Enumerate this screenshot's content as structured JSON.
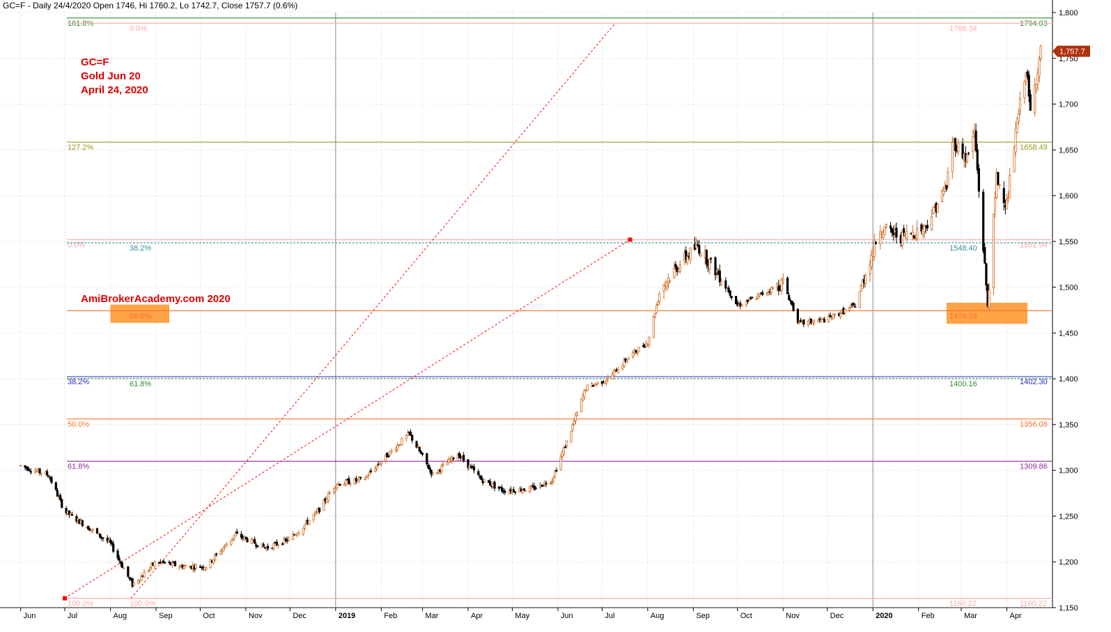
{
  "header": {
    "text": "GC=F - Daily 24/4/2020 Open 1746, Hi 1760.2, Lo 1742.7, Close 1757.7 (0.6%)"
  },
  "annotations": {
    "symbol": "GC=F",
    "contract": "Gold Jun 20",
    "date": "April 24, 2020",
    "watermark": "AmiBrokerAcademy.com  2020"
  },
  "colors": {
    "up": "#d2691e",
    "down": "#000000",
    "grid": "#b0b0b0",
    "price_badge": "#b03010",
    "highlight_box": "#ff9933",
    "trend": "#ff0000"
  },
  "chart_data": {
    "type": "candlestick",
    "title": "",
    "ylim": [
      1150,
      1800
    ],
    "y_ticks": [
      1150,
      1200,
      1250,
      1300,
      1350,
      1400,
      1450,
      1500,
      1550,
      1600,
      1650,
      1700,
      1750,
      1800
    ],
    "y_tick_labels": [
      "1,150",
      "1,200",
      "1,250",
      "1,300",
      "1,350",
      "1,400",
      "1,450",
      "1,500",
      "1,550",
      "1,600",
      "1,650",
      "1,700",
      "1,750",
      "1,800"
    ],
    "x_ticks": [
      "Jun",
      "Jul",
      "Aug",
      "Sep",
      "Oct",
      "Nov",
      "Dec",
      "2019",
      "Feb",
      "Mar",
      "Apr",
      "May",
      "Jun",
      "Jul",
      "Aug",
      "Sep",
      "Oct",
      "Nov",
      "Dec",
      "2020",
      "Feb",
      "Mar",
      "Apr"
    ],
    "bold_x_ticks": [
      "2019",
      "2020"
    ],
    "last_price_label": "1,757.7",
    "last_price": 1757.7,
    "price_path": [
      [
        "2018-06-01",
        1305
      ],
      [
        "2018-06-20",
        1295
      ],
      [
        "2018-07-01",
        1255
      ],
      [
        "2018-07-15",
        1240
      ],
      [
        "2018-08-01",
        1220
      ],
      [
        "2018-08-16",
        1175
      ],
      [
        "2018-09-01",
        1200
      ],
      [
        "2018-09-20",
        1195
      ],
      [
        "2018-10-05",
        1195
      ],
      [
        "2018-10-25",
        1230
      ],
      [
        "2018-11-15",
        1215
      ],
      [
        "2018-12-01",
        1225
      ],
      [
        "2018-12-20",
        1255
      ],
      [
        "2019-01-01",
        1285
      ],
      [
        "2019-01-20",
        1290
      ],
      [
        "2019-02-01",
        1310
      ],
      [
        "2019-02-20",
        1340
      ],
      [
        "2019-03-08",
        1295
      ],
      [
        "2019-03-25",
        1318
      ],
      [
        "2019-04-10",
        1290
      ],
      [
        "2019-04-25",
        1278
      ],
      [
        "2019-05-15",
        1280
      ],
      [
        "2019-05-28",
        1290
      ],
      [
        "2019-06-08",
        1335
      ],
      [
        "2019-06-20",
        1390
      ],
      [
        "2019-07-05",
        1400
      ],
      [
        "2019-07-20",
        1425
      ],
      [
        "2019-08-01",
        1440
      ],
      [
        "2019-08-10",
        1500
      ],
      [
        "2019-08-25",
        1530
      ],
      [
        "2019-09-04",
        1545
      ],
      [
        "2019-09-20",
        1510
      ],
      [
        "2019-10-01",
        1480
      ],
      [
        "2019-10-15",
        1490
      ],
      [
        "2019-11-01",
        1505
      ],
      [
        "2019-11-12",
        1460
      ],
      [
        "2019-12-01",
        1465
      ],
      [
        "2019-12-20",
        1480
      ],
      [
        "2020-01-06",
        1565
      ],
      [
        "2020-01-20",
        1555
      ],
      [
        "2020-02-05",
        1565
      ],
      [
        "2020-02-20",
        1610
      ],
      [
        "2020-02-24",
        1660
      ],
      [
        "2020-03-05",
        1640
      ],
      [
        "2020-03-10",
        1670
      ],
      [
        "2020-03-19",
        1480
      ],
      [
        "2020-03-25",
        1620
      ],
      [
        "2020-04-01",
        1590
      ],
      [
        "2020-04-08",
        1680
      ],
      [
        "2020-04-14",
        1740
      ],
      [
        "2020-04-17",
        1690
      ],
      [
        "2020-04-24",
        1757.7
      ]
    ],
    "fib_levels": [
      {
        "left_label": "161.8%",
        "right_label": "1794.03",
        "value": 1794.03,
        "color": "#2e8b2e",
        "dashed": false
      },
      {
        "left_label": "0.0%",
        "right_label": "1788.34",
        "value": 1788.34,
        "color": "#ffaaaa",
        "dashed": false,
        "left_offset": true
      },
      {
        "left_label": "127.2%",
        "right_label": "1658.49",
        "value": 1658.49,
        "color": "#9a9a20",
        "dashed": false
      },
      {
        "left_label": "0.0%",
        "right_label": "1551.94",
        "value": 1551.94,
        "color": "#ffaaaa",
        "dashed": false
      },
      {
        "left_label": "38.2%",
        "right_label": "1548.40",
        "value": 1548.4,
        "color": "#3a8f9a",
        "dashed": true,
        "left_offset": true
      },
      {
        "left_label": "50.0%",
        "right_label": "1474.28",
        "value": 1474.28,
        "color": "#ff6f2a",
        "dashed": false,
        "left_offset": true
      },
      {
        "left_label": "38.2%",
        "right_label": "1402.30",
        "value": 1402.3,
        "color": "#2a2ad0",
        "dashed": false
      },
      {
        "left_label": "61.8%",
        "right_label": "1400.16",
        "value": 1400.16,
        "color": "#2e8b2e",
        "dashed": true,
        "left_offset": true
      },
      {
        "left_label": "50.0%",
        "right_label": "1356.08",
        "value": 1356.08,
        "color": "#ff6f2a",
        "dashed": false
      },
      {
        "left_label": "61.8%",
        "right_label": "1309.86",
        "value": 1309.86,
        "color": "#8a2a9a",
        "dashed": false
      },
      {
        "left_label": "100.0%",
        "right_label": "1160.22",
        "value": 1160.22,
        "color": "#ffaaaa",
        "dashed": false
      },
      {
        "left_label": "100.0%",
        "right_label": "1160.22",
        "value": 1160.22,
        "color": "#ffaaaa",
        "dashed": false,
        "left_offset": true
      }
    ],
    "trend_lines": [
      {
        "from": [
          "2018-07-01",
          1160.22
        ],
        "to": [
          "2019-07-20",
          1551.94
        ]
      },
      {
        "from": [
          "2018-08-15",
          1160.22
        ],
        "to": [
          "2019-07-10",
          1788.34
        ]
      }
    ],
    "highlight_zones": [
      {
        "from": "2018-08-01",
        "to": "2018-09-10",
        "low": 1461,
        "high": 1481
      },
      {
        "from": "2020-02-20",
        "to": "2020-04-15",
        "low": 1460,
        "high": 1483
      }
    ]
  }
}
